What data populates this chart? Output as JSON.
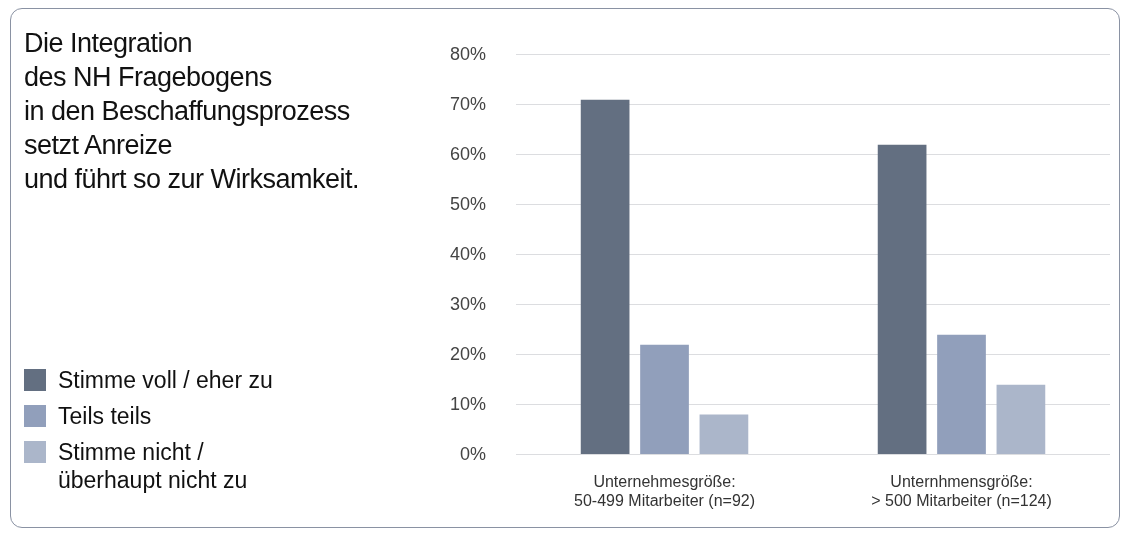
{
  "chart_data": {
    "type": "bar",
    "title": "Die Integration\ndes NH Fragebogens\nin den Beschaffungsprozess\nsetzt Anreize\nund führt so zur Wirksamkeit.",
    "categories": [
      "Unternehmesgröße:\n50-499 Mitarbeiter (n=92)",
      "Unternhmensgröße:\n> 500 Mitarbeiter (n=124)"
    ],
    "series": [
      {
        "name": "Stimme voll / eher zu",
        "color": "#636f81",
        "values": [
          71,
          62
        ]
      },
      {
        "name": "Teils teils",
        "color": "#919fbb",
        "values": [
          22,
          24
        ]
      },
      {
        "name": "Stimme nicht /\nüberhaupt nicht zu",
        "color": "#abb6ca",
        "values": [
          8,
          14
        ]
      }
    ],
    "ylim": [
      0,
      80
    ],
    "yticks": [
      {
        "value": 0,
        "label": "0%"
      },
      {
        "value": 10,
        "label": "10%"
      },
      {
        "value": 20,
        "label": "20%"
      },
      {
        "value": 30,
        "label": "30%"
      },
      {
        "value": 40,
        "label": "40%"
      },
      {
        "value": 50,
        "label": "50%"
      },
      {
        "value": 60,
        "label": "60%"
      },
      {
        "value": 70,
        "label": "70%"
      },
      {
        "value": 80,
        "label": "80%"
      }
    ],
    "grid": "y",
    "legend": "left"
  }
}
